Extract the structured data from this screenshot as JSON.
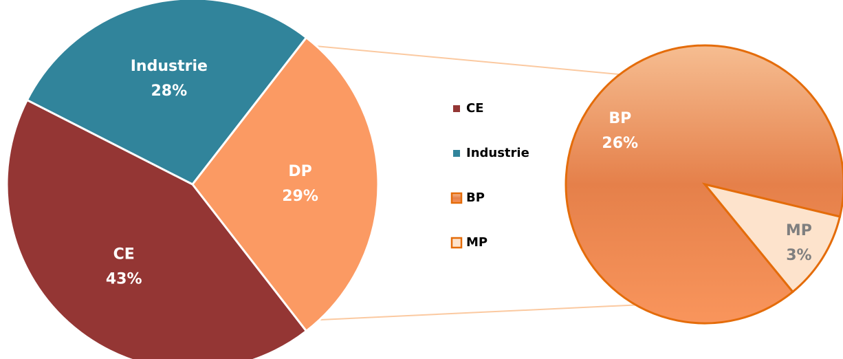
{
  "chart_data": [
    {
      "type": "pie",
      "categories": [
        "CE",
        "Industrie",
        "DP"
      ],
      "values": [
        43,
        28,
        29
      ],
      "value_labels": [
        "43%",
        "28%",
        "29%"
      ],
      "colors": [
        "#943634",
        "#31849b",
        "#fb9a63"
      ]
    },
    {
      "type": "pie",
      "categories": [
        "BP",
        "MP"
      ],
      "values": [
        26,
        3
      ],
      "value_labels": [
        "26%",
        "3%"
      ],
      "colors": [
        "#e8824c",
        "#fde3cc"
      ]
    }
  ]
}
